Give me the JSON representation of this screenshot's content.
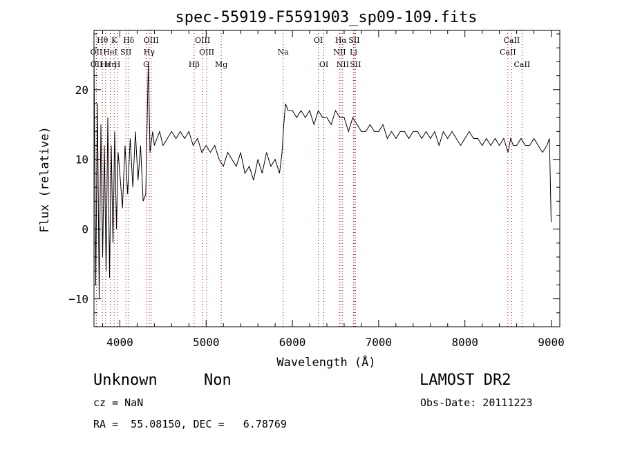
{
  "chart_data": {
    "type": "line",
    "title": "spec-55919-F5591903_sp09-109.fits",
    "xlabel": "Wavelength (Å)",
    "ylabel": "Flux (relative)",
    "xlim": [
      3700,
      9100
    ],
    "ylim": [
      -14,
      28.5
    ],
    "xticks": [
      4000,
      5000,
      6000,
      7000,
      8000,
      9000
    ],
    "yticks": [
      -10,
      0,
      10,
      20
    ],
    "grid": false,
    "series": [
      {
        "x": [
          3700,
          3720,
          3740,
          3760,
          3780,
          3800,
          3820,
          3840,
          3860,
          3880,
          3900,
          3920,
          3940,
          3960,
          3980,
          4000,
          4030,
          4060,
          4090,
          4120,
          4150,
          4180,
          4210,
          4240,
          4270,
          4300,
          4330,
          4350,
          4380,
          4400,
          4430,
          4460,
          4500,
          4550,
          4600,
          4650,
          4700,
          4750,
          4800,
          4850,
          4900,
          4950,
          5000,
          5050,
          5100,
          5150,
          5200,
          5250,
          5300,
          5350,
          5400,
          5450,
          5500,
          5550,
          5600,
          5650,
          5700,
          5750,
          5800,
          5850,
          5880,
          5900,
          5920,
          5950,
          6000,
          6050,
          6100,
          6150,
          6200,
          6250,
          6300,
          6350,
          6400,
          6450,
          6500,
          6550,
          6600,
          6650,
          6700,
          6750,
          6800,
          6850,
          6900,
          6950,
          7000,
          7050,
          7100,
          7150,
          7200,
          7250,
          7300,
          7350,
          7400,
          7450,
          7500,
          7550,
          7600,
          7650,
          7700,
          7750,
          7800,
          7850,
          7900,
          7950,
          8000,
          8050,
          8100,
          8150,
          8200,
          8250,
          8300,
          8350,
          8400,
          8450,
          8500,
          8530,
          8560,
          8600,
          8650,
          8700,
          8750,
          8800,
          8850,
          8900,
          8950,
          8980,
          9000
        ],
        "y": [
          25,
          -8,
          18,
          -10,
          15,
          -4,
          12,
          -6,
          16,
          -7,
          12,
          -2,
          14,
          0,
          11,
          8,
          3,
          12,
          5,
          13,
          6,
          14,
          7,
          12,
          4,
          5,
          24,
          11,
          14,
          12,
          13,
          14,
          12,
          13,
          14,
          13,
          14,
          13,
          14,
          12,
          13,
          11,
          12,
          11,
          12,
          10,
          9,
          11,
          10,
          9,
          11,
          8,
          9,
          7,
          10,
          8,
          11,
          9,
          10,
          8,
          11,
          15,
          18,
          17,
          17,
          16,
          17,
          16,
          17,
          15,
          17,
          16,
          16,
          15,
          17,
          16,
          16,
          14,
          16,
          15,
          14,
          14,
          15,
          14,
          14,
          15,
          13,
          14,
          13,
          14,
          14,
          13,
          14,
          14,
          13,
          14,
          13,
          14,
          12,
          14,
          13,
          14,
          13,
          12,
          13,
          14,
          13,
          13,
          12,
          13,
          12,
          13,
          12,
          13,
          11,
          13,
          12,
          12,
          13,
          12,
          12,
          13,
          12,
          11,
          12,
          13,
          1
        ]
      }
    ],
    "lines": [
      {
        "label": "Hθ",
        "x": 3798,
        "row": 1
      },
      {
        "label": "K",
        "x": 3934,
        "row": 1
      },
      {
        "label": "Hδ",
        "x": 4102,
        "row": 1
      },
      {
        "label": "OIII",
        "x": 4363,
        "row": 1
      },
      {
        "label": "OIII",
        "x": 4959,
        "row": 1
      },
      {
        "label": "OI",
        "x": 6300,
        "row": 1
      },
      {
        "label": "Hα",
        "x": 6563,
        "row": 1
      },
      {
        "label": "SII",
        "x": 6716,
        "row": 1
      },
      {
        "label": "CaII",
        "x": 8542,
        "row": 1
      },
      {
        "label": "OII",
        "x": 3727,
        "row": 2
      },
      {
        "label": "HeI",
        "x": 3889,
        "row": 2
      },
      {
        "label": "SII",
        "x": 4070,
        "row": 2
      },
      {
        "label": "Hγ",
        "x": 4340,
        "row": 2
      },
      {
        "label": "OIII",
        "x": 5007,
        "row": 2
      },
      {
        "label": "Na",
        "x": 5893,
        "row": 2
      },
      {
        "label": "NII",
        "x": 6548,
        "row": 2
      },
      {
        "label": "Li",
        "x": 6708,
        "row": 2
      },
      {
        "label": "CaII",
        "x": 8498,
        "row": 2
      },
      {
        "label": "OII",
        "x": 3729,
        "row": 3
      },
      {
        "label": "Hε",
        "x": 3835,
        "row": 3
      },
      {
        "label": "Hη",
        "x": 3889,
        "row": 3
      },
      {
        "label": "H",
        "x": 3969,
        "row": 3
      },
      {
        "label": "G",
        "x": 4305,
        "row": 3
      },
      {
        "label": "Hβ",
        "x": 4861,
        "row": 3
      },
      {
        "label": "Mg",
        "x": 5175,
        "row": 3
      },
      {
        "label": "OI",
        "x": 6364,
        "row": 3
      },
      {
        "label": "NII",
        "x": 6583,
        "row": 3
      },
      {
        "label": "SII",
        "x": 6731,
        "row": 3
      },
      {
        "label": "CaII",
        "x": 8662,
        "row": 3
      }
    ],
    "line_color": "#cc0000"
  },
  "info": {
    "class": "Unknown",
    "subclass": "Non",
    "survey": "LAMOST DR2",
    "cz": "cz = NaN",
    "obs_date": "Obs-Date: 20111223",
    "radec": "RA =  55.08150, DEC =   6.78769"
  }
}
